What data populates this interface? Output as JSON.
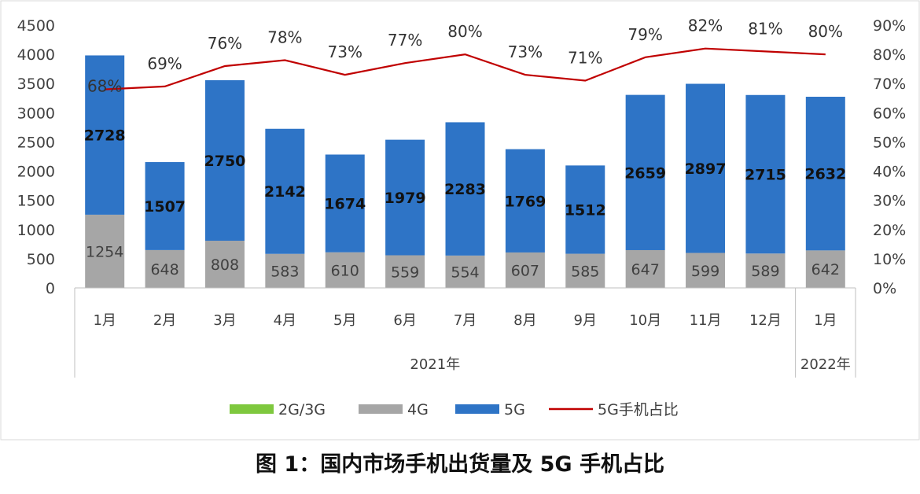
{
  "caption": "图 1：国内市场手机出货量及 5G 手机占比",
  "chart_data": {
    "type": "bar",
    "stacked": true,
    "categories": [
      "1月",
      "2月",
      "3月",
      "4月",
      "5月",
      "6月",
      "7月",
      "8月",
      "9月",
      "10月",
      "11月",
      "12月",
      "1月"
    ],
    "year_groups": [
      {
        "label": "2021年",
        "count": 12
      },
      {
        "label": "2022年",
        "count": 1
      }
    ],
    "series": [
      {
        "name": "2G/3G",
        "color": "#7ec83e",
        "values": [
          0,
          0,
          0,
          0,
          0,
          0,
          0,
          0,
          0,
          0,
          0,
          0,
          0
        ]
      },
      {
        "name": "4G",
        "color": "#a6a6a6",
        "values": [
          1254,
          648,
          808,
          583,
          610,
          559,
          554,
          607,
          585,
          647,
          599,
          589,
          642
        ]
      },
      {
        "name": "5G",
        "color": "#2e74c6",
        "values": [
          2728,
          1507,
          2750,
          2142,
          1674,
          1979,
          2283,
          1769,
          1512,
          2659,
          2897,
          2715,
          2632
        ]
      }
    ],
    "line_series": {
      "name": "5G手机占比",
      "color": "#c00000",
      "values": [
        68,
        69,
        76,
        78,
        73,
        77,
        80,
        73,
        71,
        79,
        82,
        81,
        80
      ],
      "labels": [
        "68%",
        "69%",
        "76%",
        "78%",
        "73%",
        "77%",
        "80%",
        "73%",
        "71%",
        "79%",
        "82%",
        "81%",
        "80%"
      ]
    },
    "y_left": {
      "min": 0,
      "max": 4500,
      "ticks": [
        "0",
        "500",
        "1000",
        "1500",
        "2000",
        "2500",
        "3000",
        "3500",
        "4000",
        "4500"
      ]
    },
    "y_right": {
      "min": 0,
      "max": 90,
      "ticks": [
        "0%",
        "10%",
        "20%",
        "30%",
        "40%",
        "50%",
        "60%",
        "70%",
        "80%",
        "90%"
      ]
    },
    "legend": {
      "position": "bottom",
      "items": [
        "2G/3G",
        "4G",
        "5G",
        "5G手机占比"
      ]
    },
    "grid": false
  }
}
